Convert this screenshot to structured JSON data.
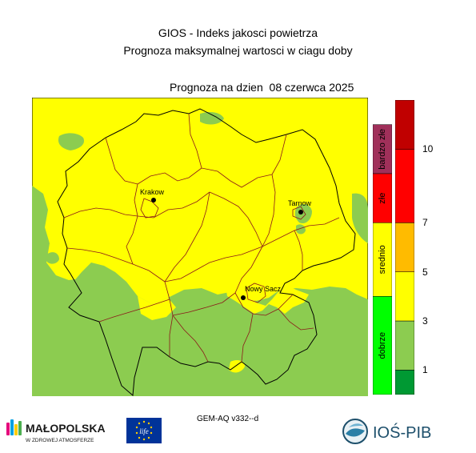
{
  "header": {
    "title_line1": "GIOS - Indeks jakosci powietrza",
    "title_line2": "Prognoza maksymalnej wartosci w ciagu doby",
    "forecast_label": "Prognoza na dzien  08 czerwca 2025"
  },
  "cities": [
    {
      "name": "Krakow"
    },
    {
      "name": "Tarnow"
    },
    {
      "name": "Nowy Sacz"
    }
  ],
  "quality_legend": [
    {
      "label": "bardzo złe",
      "color": "#a0305a",
      "from": 9,
      "to": 11
    },
    {
      "label": "złe",
      "color": "#ff0000",
      "from": 7,
      "to": 9
    },
    {
      "label": "srednio",
      "color": "#ffff00",
      "from": 4,
      "to": 7
    },
    {
      "label": "dobrze",
      "color": "#00ff00",
      "from": 0,
      "to": 4
    }
  ],
  "scale_legend": {
    "bands": [
      {
        "color": "#009933",
        "from": 0,
        "to": 1
      },
      {
        "color": "#8ccc50",
        "from": 1,
        "to": 3
      },
      {
        "color": "#ffff00",
        "from": 3,
        "to": 5
      },
      {
        "color": "#ffbb00",
        "from": 5,
        "to": 7
      },
      {
        "color": "#ff0000",
        "from": 7,
        "to": 10
      },
      {
        "color": "#c00000",
        "from": 10,
        "to": 12
      }
    ],
    "ticks": [
      "1",
      "3",
      "5",
      "7",
      "10"
    ]
  },
  "map_colors": {
    "high": "#ffff00",
    "low": "#8ccc50"
  },
  "footer": {
    "model_label": "GEM-AQ v332--d",
    "malopolska_name": "MAŁOPOLSKA",
    "malopolska_tagline": "W ZDROWEJ ATMOSFERZE",
    "eu_logo_text": "life",
    "ios_name": "IOŚ-PIB"
  }
}
